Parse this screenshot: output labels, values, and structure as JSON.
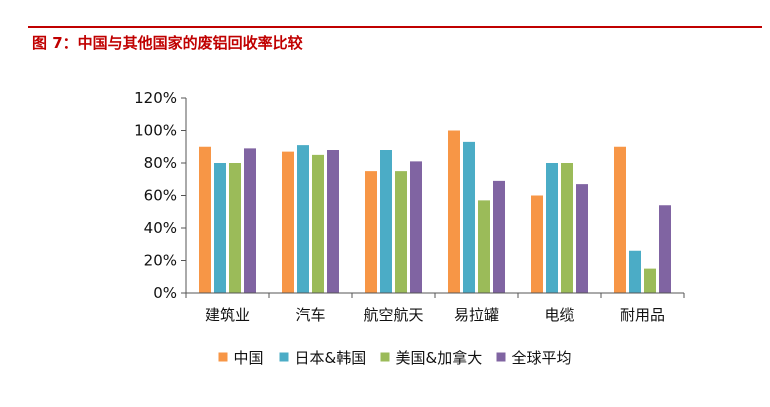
{
  "figure": {
    "title": "图 7：中国与其他国家的废铝回收率比较",
    "accent_color": "#c00000"
  },
  "chart_data": {
    "type": "bar",
    "title": "",
    "xlabel": "",
    "ylabel": "",
    "categories": [
      "建筑业",
      "汽车",
      "航空航天",
      "易拉罐",
      "电缆",
      "耐用品"
    ],
    "series": [
      {
        "name": "中国",
        "color": "#f79646",
        "values": [
          90,
          87,
          75,
          100,
          60,
          90
        ]
      },
      {
        "name": "日本&韩国",
        "color": "#4bacc6",
        "values": [
          80,
          91,
          88,
          93,
          80,
          26
        ]
      },
      {
        "name": "美国&加拿大",
        "color": "#9bbb59",
        "values": [
          80,
          85,
          75,
          57,
          80,
          15
        ]
      },
      {
        "name": "全球平均",
        "color": "#8064a2",
        "values": [
          89,
          88,
          81,
          69,
          67,
          54
        ]
      }
    ],
    "ylim": [
      0,
      120
    ],
    "yticks": [
      0,
      20,
      40,
      60,
      80,
      100,
      120
    ],
    "ytick_labels": [
      "0%",
      "20%",
      "40%",
      "60%",
      "80%",
      "100%",
      "120%"
    ],
    "grid": false,
    "legend_position": "bottom"
  }
}
